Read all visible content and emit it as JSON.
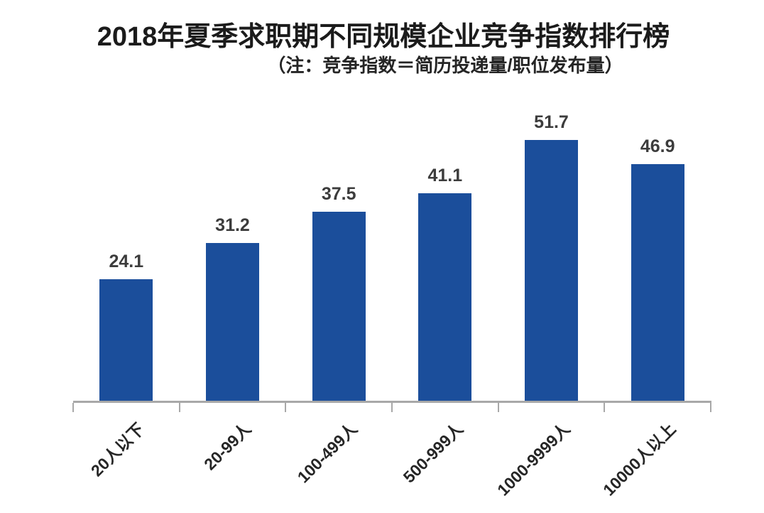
{
  "page": {
    "background_color": "#ffffff"
  },
  "chart": {
    "bar_color": "#1b4e9b",
    "axis_color": "#a8a8a8",
    "title_color": "#1b1b1b",
    "subtitle_color": "#252525",
    "value_label_color": "#3c3c3c",
    "category_label_color": "#262626"
  },
  "chart_data": {
    "type": "bar",
    "title": "2018年夏季求职期不同规模企业竞争指数排行榜",
    "subtitle": "（注：竞争指数＝简历投递量/职位发布量）",
    "categories": [
      "20人以下",
      "20-99人",
      "100-499人",
      "500-999人",
      "1000-9999人",
      "10000人以上"
    ],
    "values": [
      24.1,
      31.2,
      37.5,
      41.1,
      51.7,
      46.9
    ],
    "xlabel": "",
    "ylabel": "",
    "ylim": [
      0,
      60
    ],
    "grid": false,
    "legend": false,
    "data_labels": true,
    "category_label_rotation_deg": 45
  }
}
